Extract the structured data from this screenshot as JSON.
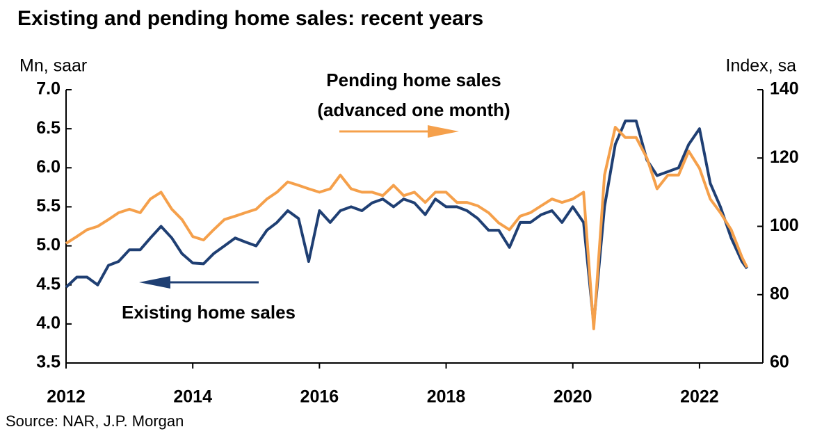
{
  "chart_data": {
    "type": "line",
    "title": "Existing and pending home sales: recent years",
    "y_label": "Mn, saar",
    "y2_label": "Index, sa",
    "source": "Source: NAR, J.P. Morgan",
    "annotations": [
      "Pending home sales",
      "(advanced one month)",
      "Existing home sales"
    ],
    "x": [
      2012.0,
      2012.17,
      2012.33,
      2012.5,
      2012.67,
      2012.83,
      2013.0,
      2013.17,
      2013.33,
      2013.5,
      2013.67,
      2013.83,
      2014.0,
      2014.17,
      2014.33,
      2014.5,
      2014.67,
      2014.83,
      2015.0,
      2015.17,
      2015.33,
      2015.5,
      2015.67,
      2015.83,
      2016.0,
      2016.17,
      2016.33,
      2016.5,
      2016.67,
      2016.83,
      2017.0,
      2017.17,
      2017.33,
      2017.5,
      2017.67,
      2017.83,
      2018.0,
      2018.17,
      2018.33,
      2018.5,
      2018.67,
      2018.83,
      2019.0,
      2019.17,
      2019.33,
      2019.5,
      2019.67,
      2019.83,
      2020.0,
      2020.17,
      2020.33,
      2020.5,
      2020.67,
      2020.83,
      2021.0,
      2021.17,
      2021.33,
      2021.5,
      2021.67,
      2021.83,
      2022.0,
      2022.17,
      2022.33,
      2022.5,
      2022.67,
      2022.75
    ],
    "series": [
      {
        "name": "Existing home sales",
        "color": "#1f3f73",
        "values": [
          4.47,
          4.6,
          4.6,
          4.5,
          4.75,
          4.8,
          4.95,
          4.95,
          5.1,
          5.25,
          5.1,
          4.9,
          4.78,
          4.77,
          4.9,
          5.0,
          5.1,
          5.05,
          5.0,
          5.2,
          5.3,
          5.45,
          5.35,
          4.8,
          5.45,
          5.3,
          5.45,
          5.5,
          5.45,
          5.55,
          5.6,
          5.5,
          5.6,
          5.55,
          5.4,
          5.6,
          5.5,
          5.5,
          5.45,
          5.35,
          5.2,
          5.2,
          4.98,
          5.3,
          5.3,
          5.4,
          5.45,
          5.3,
          5.5,
          5.3,
          4.0,
          5.5,
          6.3,
          6.6,
          6.6,
          6.1,
          5.9,
          5.95,
          6.0,
          6.3,
          6.5,
          5.8,
          5.5,
          5.1,
          4.8,
          4.71
        ]
      },
      {
        "name": "Pending home sales",
        "color": "#f5a04b",
        "axis": "y2",
        "values": [
          95,
          97,
          99,
          100,
          102,
          104,
          105,
          104,
          108,
          110,
          105,
          102,
          97,
          96,
          99,
          102,
          103,
          104,
          105,
          108,
          110,
          113,
          112,
          111,
          110,
          111,
          115,
          111,
          110,
          110,
          109,
          112,
          109,
          110,
          107,
          110,
          110,
          107,
          107,
          106,
          104,
          101,
          99,
          103,
          104,
          106,
          108,
          107,
          108,
          110,
          70,
          115,
          129,
          126,
          126,
          120,
          111,
          115,
          115,
          122,
          117,
          108,
          104,
          99,
          91,
          88
        ]
      }
    ],
    "xlim": [
      2012,
      2023
    ],
    "xticks": [
      2012,
      2014,
      2016,
      2018,
      2020,
      2022
    ],
    "ylim": [
      3.5,
      7.0
    ],
    "yticks": [
      {
        "value": 3.5,
        "label": "3.5"
      },
      {
        "value": 4,
        "label": "4.0"
      },
      {
        "value": 4.5,
        "label": "4.5"
      },
      {
        "value": 5,
        "label": "5.0"
      },
      {
        "value": 5.5,
        "label": "5.5"
      },
      {
        "value": 6,
        "label": "6.0"
      },
      {
        "value": 6.5,
        "label": "6.5"
      },
      {
        "value": 7,
        "label": "7.0"
      }
    ],
    "y2lim": [
      60,
      140
    ],
    "y2ticks": [
      60,
      80,
      100,
      120,
      140
    ]
  }
}
